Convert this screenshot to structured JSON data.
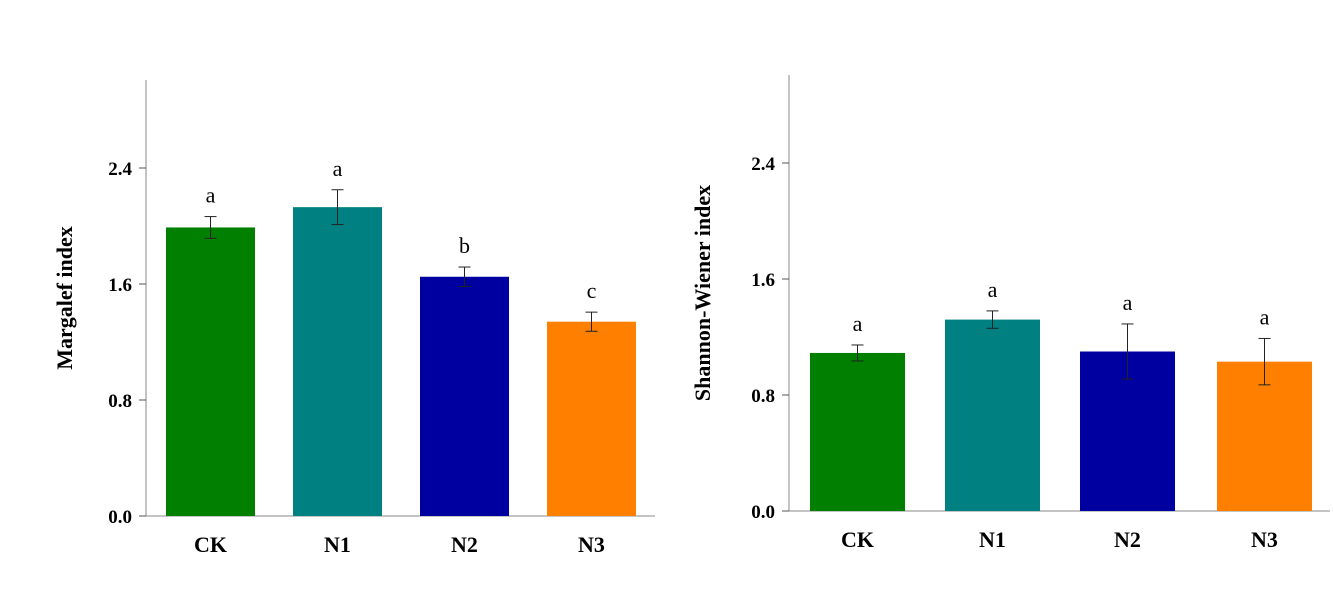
{
  "chart_data": [
    {
      "type": "bar",
      "title": "",
      "xlabel": "",
      "ylabel": "Margalef  index",
      "ylim": [
        0,
        3.0
      ],
      "yticks": [
        "0.0",
        "0.8",
        "1.6",
        "2.4"
      ],
      "categories": [
        "CK",
        "N1",
        "N2",
        "N3"
      ],
      "values": [
        1.99,
        2.13,
        1.65,
        1.34
      ],
      "errors": [
        0.075,
        0.12,
        0.067,
        0.066
      ],
      "significance": [
        "a",
        "a",
        "b",
        "c"
      ],
      "colors": [
        "#007f00",
        "#008080",
        "#0000a0",
        "#ff8000"
      ],
      "grid": false
    },
    {
      "type": "bar",
      "title": "",
      "xlabel": "",
      "ylabel": "Shannon-Wiener index",
      "ylim": [
        0,
        3.0
      ],
      "yticks": [
        "0.0",
        "0.8",
        "1.6",
        "2.4"
      ],
      "categories": [
        "CK",
        "N1",
        "N2",
        "N3"
      ],
      "values": [
        1.09,
        1.32,
        1.1,
        1.03
      ],
      "errors": [
        0.055,
        0.06,
        0.19,
        0.16
      ],
      "significance": [
        "a",
        "a",
        "a",
        "a"
      ],
      "colors": [
        "#007f00",
        "#008080",
        "#0000a0",
        "#ff8000"
      ],
      "grid": false
    }
  ]
}
